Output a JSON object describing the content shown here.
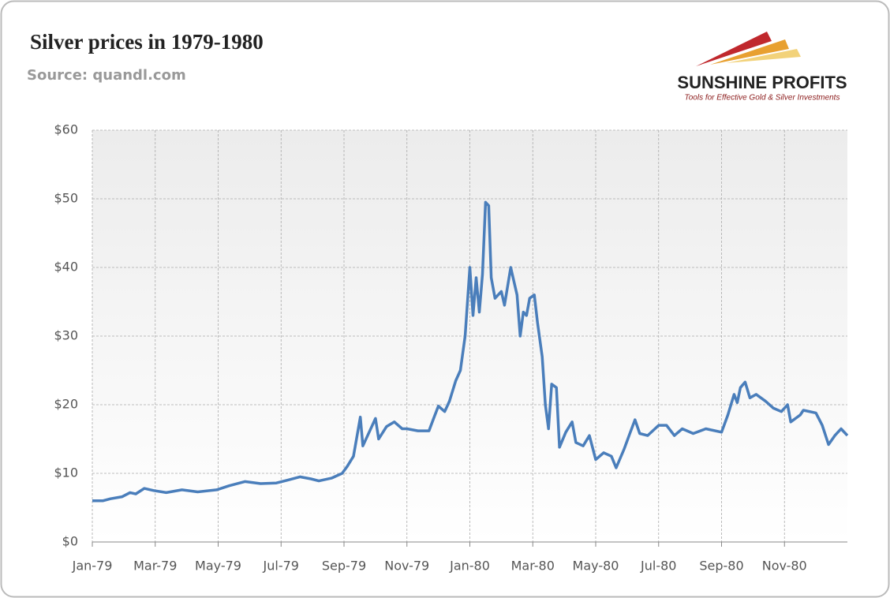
{
  "chart_data": {
    "type": "line",
    "title": "Silver prices in 1979-1980",
    "subtitle": "Source: quandl.com",
    "logo": {
      "name": "SUNSHINE PROFITS",
      "tagline": "Tools for Effective Gold & Silver Investments"
    },
    "x": [
      0,
      0.33,
      0.58,
      0.95,
      1.2,
      1.38,
      1.65,
      1.95,
      2.35,
      2.85,
      3.35,
      3.95,
      4.35,
      4.85,
      5.35,
      5.85,
      6.2,
      6.6,
      6.95,
      7.2,
      7.6,
      7.94,
      8.1,
      8.3,
      8.52,
      8.6,
      8.8,
      9.0,
      9.1,
      9.35,
      9.6,
      9.85,
      10.0,
      10.35,
      10.7,
      10.85,
      11.0,
      11.2,
      11.35,
      11.55,
      11.7,
      11.85,
      12.0,
      12.1,
      12.2,
      12.3,
      12.4,
      12.5,
      12.6,
      12.68,
      12.8,
      13.0,
      13.1,
      13.3,
      13.5,
      13.6,
      13.7,
      13.8,
      13.9,
      14.05,
      14.15,
      14.3,
      14.4,
      14.5,
      14.6,
      14.75,
      14.85,
      15.05,
      15.25,
      15.37,
      15.6,
      15.8,
      16.0,
      16.25,
      16.5,
      16.65,
      16.9,
      17.1,
      17.25,
      17.4,
      17.65,
      18.0,
      18.25,
      18.5,
      18.75,
      19.1,
      19.5,
      20.0,
      20.2,
      20.4,
      20.5,
      20.6,
      20.75,
      20.9,
      21.1,
      21.4,
      21.65,
      21.9,
      22.1,
      22.2,
      22.5,
      22.6,
      23.0,
      23.2,
      23.4,
      23.6,
      23.8,
      24.0
    ],
    "series": [
      {
        "name": "Silver price",
        "color": "#4a7ebb",
        "values": [
          6.0,
          6.0,
          6.3,
          6.6,
          7.2,
          7.0,
          7.8,
          7.5,
          7.2,
          7.6,
          7.3,
          7.6,
          8.2,
          8.8,
          8.5,
          8.6,
          9.0,
          9.5,
          9.2,
          8.9,
          9.3,
          10.0,
          11.0,
          12.5,
          18.2,
          14.0,
          16.0,
          18.0,
          15.0,
          16.8,
          17.5,
          16.5,
          16.5,
          16.2,
          16.2,
          18.0,
          19.8,
          19.0,
          20.5,
          23.5,
          25.0,
          30.0,
          40.0,
          33.0,
          38.5,
          33.5,
          39.0,
          49.5,
          49.0,
          38.5,
          35.5,
          36.5,
          34.5,
          40.0,
          36.0,
          30.0,
          33.5,
          33.0,
          35.5,
          36.0,
          32.0,
          27.0,
          20.0,
          16.5,
          23.0,
          22.5,
          13.8,
          16.0,
          17.5,
          14.5,
          14.0,
          15.5,
          12.0,
          13.0,
          12.5,
          10.8,
          13.5,
          16.0,
          17.8,
          15.8,
          15.5,
          17.0,
          17.0,
          15.5,
          16.5,
          15.8,
          16.5,
          16.0,
          18.5,
          21.5,
          20.3,
          22.5,
          23.3,
          21.0,
          21.5,
          20.5,
          19.5,
          19.0,
          20.0,
          17.5,
          18.5,
          19.2,
          18.8,
          17.0,
          14.2,
          15.5,
          16.5,
          15.5
        ]
      }
    ],
    "xlim": [
      0,
      24
    ],
    "xticks": [
      {
        "value": 0,
        "label": "Jan-79"
      },
      {
        "value": 2,
        "label": "Mar-79"
      },
      {
        "value": 4,
        "label": "May-79"
      },
      {
        "value": 6,
        "label": "Jul-79"
      },
      {
        "value": 8,
        "label": "Sep-79"
      },
      {
        "value": 10,
        "label": "Nov-79"
      },
      {
        "value": 12,
        "label": "Jan-80"
      },
      {
        "value": 14,
        "label": "Mar-80"
      },
      {
        "value": 16,
        "label": "May-80"
      },
      {
        "value": 18,
        "label": "Jul-80"
      },
      {
        "value": 20,
        "label": "Sep-80"
      },
      {
        "value": 22,
        "label": "Nov-80"
      }
    ],
    "ylim": [
      0,
      60
    ],
    "yticks": [
      {
        "value": 0,
        "label": "$0"
      },
      {
        "value": 10,
        "label": "$10"
      },
      {
        "value": 20,
        "label": "$20"
      },
      {
        "value": 30,
        "label": "$30"
      },
      {
        "value": 40,
        "label": "$40"
      },
      {
        "value": 50,
        "label": "$50"
      },
      {
        "value": 60,
        "label": "$60"
      }
    ],
    "grid": true
  }
}
